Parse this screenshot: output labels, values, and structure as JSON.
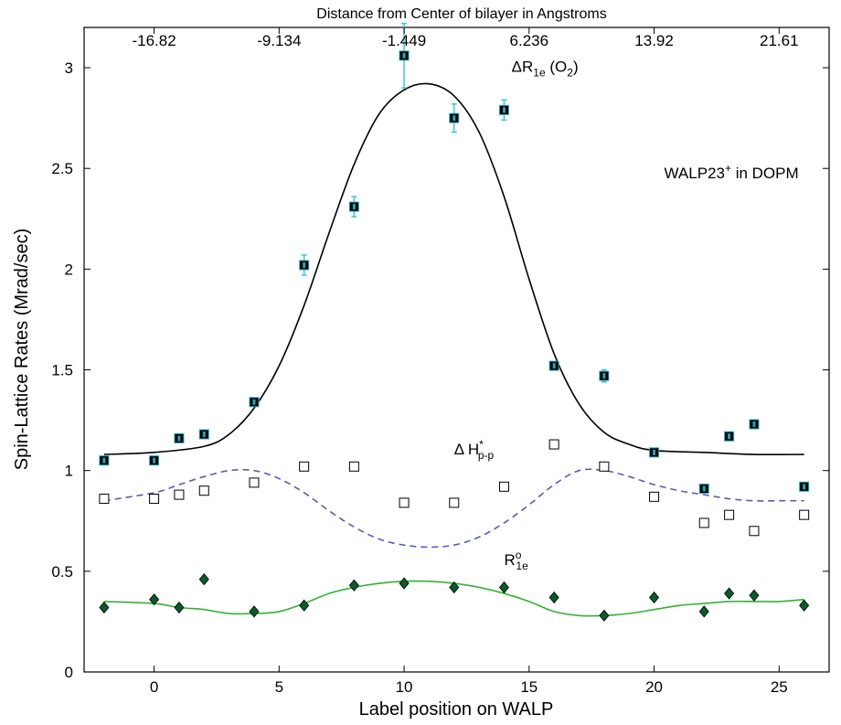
{
  "chart_data": {
    "type": "scatter",
    "title": "",
    "xlabel": "Label position on WALP",
    "ylabel": "Spin-Lattice Rates (Mrad/sec)",
    "xlim": [
      -2.8,
      27
    ],
    "ylim": [
      0,
      3.2
    ],
    "x_ticks": [
      0,
      5,
      10,
      15,
      20,
      25
    ],
    "y_ticks": [
      0,
      0.5,
      1,
      1.5,
      2,
      2.5,
      3
    ],
    "x_tick_labels": [
      "0",
      "5",
      "10",
      "15",
      "20",
      "25"
    ],
    "y_tick_labels": [
      "0",
      "0.5",
      "1",
      "1.5",
      "2",
      "2.5",
      "3"
    ],
    "top_axis": {
      "label": "Distance from Center of bilayer in Angstroms",
      "tick_labels": [
        "-16.82",
        "-9.134",
        "-1.449",
        "6.236",
        "13.92",
        "21.61"
      ],
      "tick_positions": [
        0,
        5,
        10,
        15,
        20,
        25
      ]
    },
    "annotations": {
      "delta_r1e": {
        "main": "ΔR",
        "sub": "1e",
        "suffix": " (O",
        "suffix_sub": "2",
        "close": ")",
        "x": 14.3,
        "y": 2.98
      },
      "walp": {
        "main": "WALP23",
        "sup": "+",
        "suffix": " in DOPM",
        "x": 20.4,
        "y": 2.45
      },
      "delta_h": {
        "main": "Δ H",
        "sup": "*",
        "sub": "p-p",
        "x": 12.0,
        "y": 1.08
      },
      "r1e_zero": {
        "main": "R",
        "sup": "o",
        "sub": "1e",
        "x": 14.0,
        "y": 0.53
      }
    },
    "series": [
      {
        "marker": "filled-square",
        "color": "#000000",
        "x": [
          -2,
          0,
          1,
          2,
          4,
          6,
          8,
          10,
          12,
          14,
          16,
          18,
          20,
          22,
          23,
          24,
          26
        ],
        "y": [
          1.05,
          1.05,
          1.16,
          1.18,
          1.34,
          2.02,
          2.31,
          3.06,
          2.75,
          2.79,
          1.52,
          1.47,
          1.09,
          0.91,
          1.17,
          1.23,
          0.92
        ],
        "err": [
          0.0,
          0.0,
          0.0,
          0.02,
          0.0,
          0.05,
          0.05,
          0.16,
          0.07,
          0.05,
          0.0,
          0.03,
          0.0,
          0.0,
          0.0,
          0.0,
          0.0
        ],
        "error_bar_color": "#3fc6d6"
      },
      {
        "marker": "open-square",
        "color": "#000000",
        "x": [
          -2,
          0,
          1,
          2,
          4,
          6,
          8,
          10,
          12,
          14,
          16,
          18,
          20,
          22,
          23,
          24,
          26
        ],
        "y": [
          0.86,
          0.86,
          0.88,
          0.9,
          0.94,
          1.02,
          1.02,
          0.84,
          0.84,
          0.92,
          1.13,
          1.02,
          0.87,
          0.74,
          0.78,
          0.7,
          0.78
        ]
      },
      {
        "marker": "filled-diamond",
        "color": "#0b5a2c",
        "x": [
          -2,
          0,
          1,
          2,
          4,
          6,
          8,
          10,
          12,
          14,
          16,
          18,
          20,
          22,
          23,
          24,
          26
        ],
        "y": [
          0.32,
          0.36,
          0.32,
          0.46,
          0.3,
          0.33,
          0.43,
          0.44,
          0.42,
          0.42,
          0.37,
          0.28,
          0.37,
          0.3,
          0.39,
          0.38,
          0.33
        ]
      }
    ],
    "fits": [
      {
        "style": "solid",
        "color": "#000000",
        "x": [
          -2,
          0,
          2,
          3,
          4,
          5,
          6,
          7,
          8,
          9,
          10,
          11,
          12,
          13,
          14,
          15,
          16,
          17,
          18,
          19,
          20,
          22,
          24,
          26
        ],
        "y": [
          1.08,
          1.09,
          1.12,
          1.18,
          1.31,
          1.52,
          1.82,
          2.18,
          2.52,
          2.77,
          2.89,
          2.92,
          2.86,
          2.68,
          2.36,
          1.95,
          1.58,
          1.33,
          1.19,
          1.13,
          1.1,
          1.09,
          1.08,
          1.08
        ]
      },
      {
        "style": "dashed",
        "color": "#5b5bb5",
        "x": [
          -2,
          0,
          1,
          2,
          3,
          4,
          5,
          6,
          7,
          8,
          9,
          10,
          11,
          12,
          13,
          14,
          15,
          16,
          17,
          18,
          19,
          20,
          21,
          22,
          23,
          24,
          25,
          26
        ],
        "y": [
          0.85,
          0.89,
          0.93,
          0.97,
          1.0,
          1.0,
          0.96,
          0.89,
          0.8,
          0.72,
          0.66,
          0.63,
          0.62,
          0.63,
          0.67,
          0.74,
          0.83,
          0.93,
          1.0,
          1.0,
          0.97,
          0.93,
          0.9,
          0.88,
          0.86,
          0.85,
          0.85,
          0.85
        ]
      },
      {
        "style": "solid",
        "color": "#33b233",
        "x": [
          -2,
          0,
          1,
          2,
          3,
          4,
          5,
          6,
          7,
          8,
          9,
          10,
          11,
          12,
          13,
          14,
          15,
          16,
          17,
          18,
          19,
          20,
          21,
          22,
          23,
          24,
          25,
          26
        ],
        "y": [
          0.35,
          0.34,
          0.32,
          0.31,
          0.29,
          0.29,
          0.3,
          0.34,
          0.39,
          0.42,
          0.44,
          0.45,
          0.45,
          0.44,
          0.42,
          0.39,
          0.35,
          0.3,
          0.28,
          0.28,
          0.29,
          0.31,
          0.33,
          0.34,
          0.35,
          0.35,
          0.35,
          0.36
        ]
      }
    ]
  }
}
